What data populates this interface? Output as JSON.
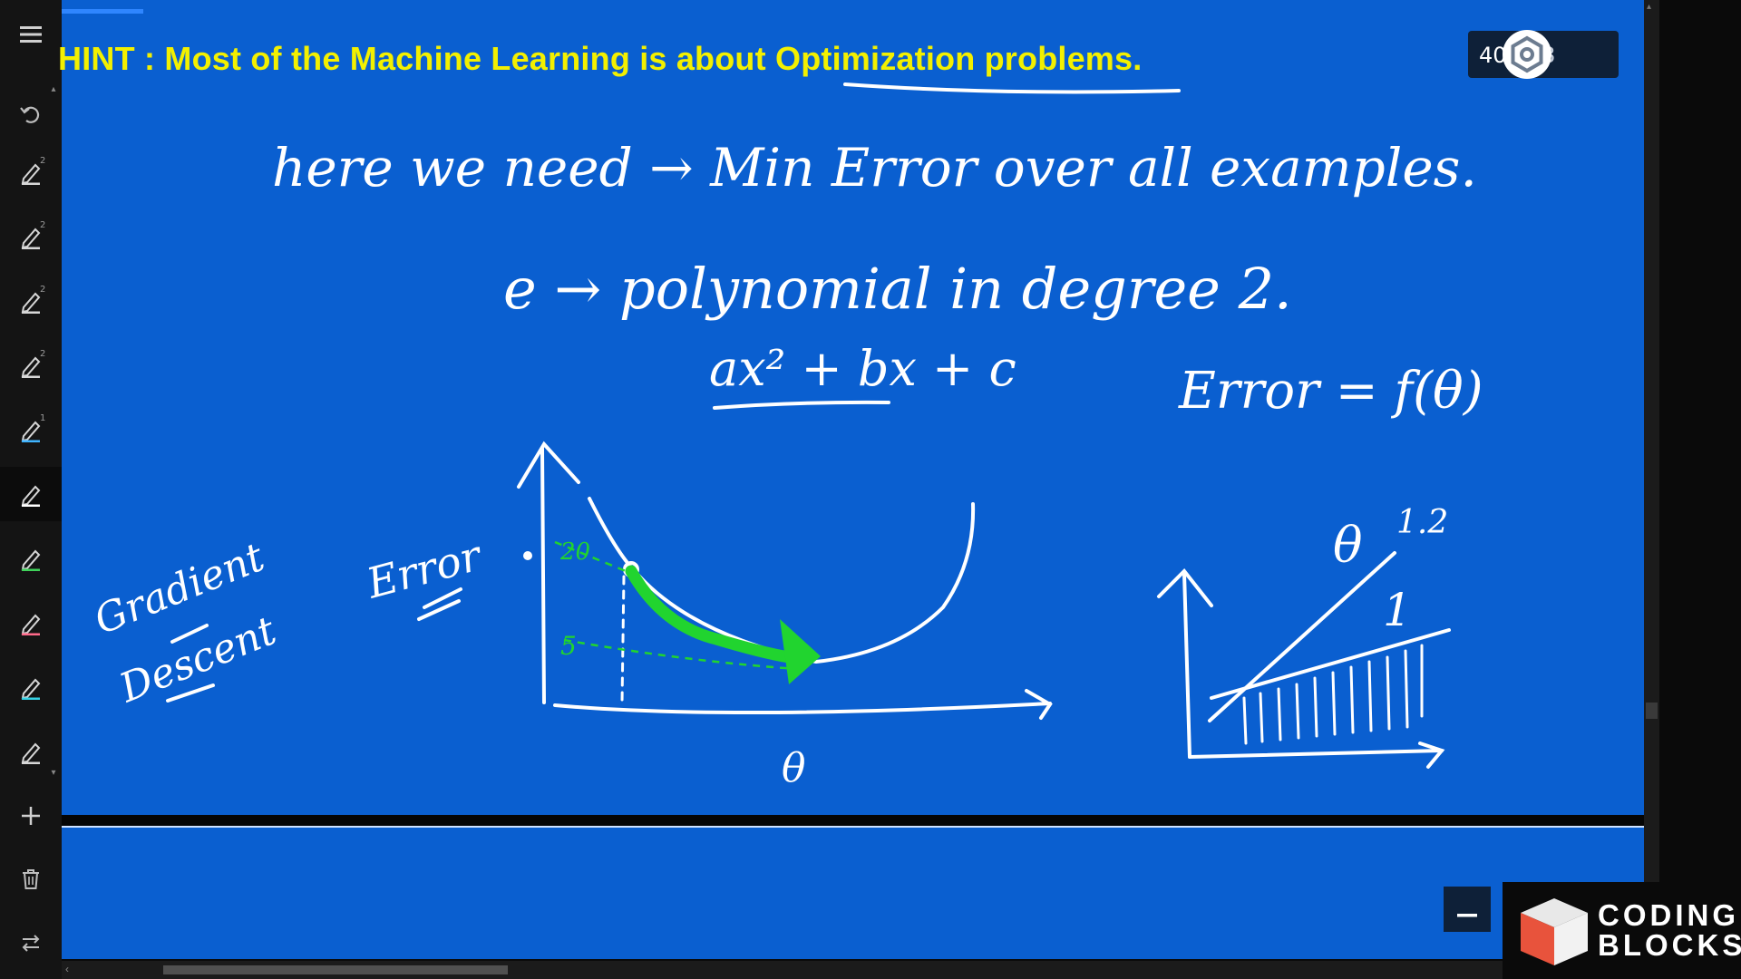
{
  "slide": {
    "hint_text": "HINT : Most of the Machine Learning is about Optimization problems.",
    "page_current": "40",
    "page_separator": "/",
    "page_total": "53"
  },
  "handwriting": {
    "line1": "here we need → Min Error over all examples.",
    "line2": "e → polynomial in degree 2.",
    "polynomial": "ax² + bx + c",
    "error_fn": "Error = f(θ)",
    "gradient_label_1": "Gradient",
    "gradient_label_2": "Descent",
    "error_axis_label": "Error",
    "theta_axis_label": "θ",
    "tick_20": "20",
    "tick_5": "5",
    "right_theta": "θ",
    "value_1_2": "1.2",
    "value_1": "1"
  },
  "toolbar": {
    "tools": [
      {
        "icon": "menu-icon"
      },
      {
        "icon": "undo-icon"
      },
      {
        "icon": "pen-icon",
        "badge": "2"
      },
      {
        "icon": "pen-icon",
        "badge": "2"
      },
      {
        "icon": "pen-icon",
        "badge": "2"
      },
      {
        "icon": "pen-icon",
        "badge": "2"
      },
      {
        "icon": "pen-icon",
        "badge": "1"
      },
      {
        "icon": "pen-icon"
      },
      {
        "icon": "pen-icon"
      },
      {
        "icon": "pen-icon"
      },
      {
        "icon": "pen-icon"
      },
      {
        "icon": "pen-icon"
      },
      {
        "icon": "add-icon"
      },
      {
        "icon": "trash-icon"
      },
      {
        "icon": "swap-icon"
      }
    ],
    "pen_colors": [
      "#d8d8d8",
      "#d8d8d8",
      "#d8d8d8",
      "#d8d8d8",
      "#3fb4ff",
      "#ffffff",
      "#3fd25a",
      "#ff6a8a",
      "#36d3e6",
      "#d8d8d8"
    ]
  },
  "brand": {
    "line1": "CODING",
    "line2": "BLOCKS"
  },
  "colors": {
    "slide_bg": "#0a5fd0",
    "hint_yellow": "#f3f000",
    "ink_white": "#ffffff",
    "ink_green": "#21d42f"
  }
}
